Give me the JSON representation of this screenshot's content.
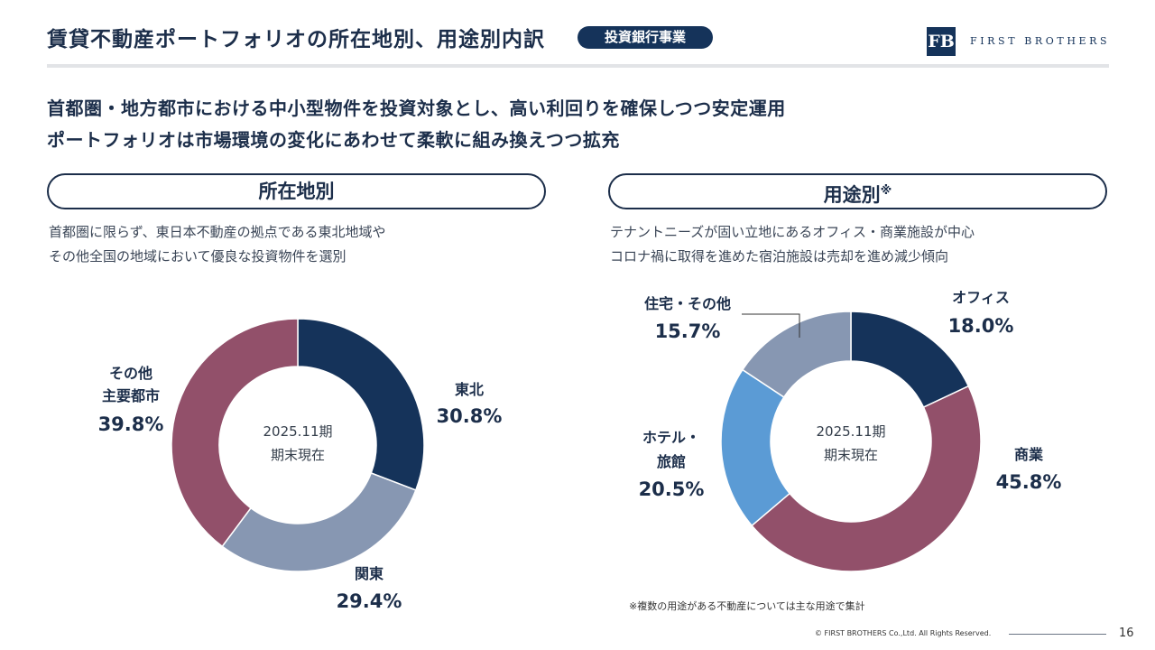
{
  "header": {
    "title": "賃貸不動産ポートフォリオの所在地別、用途別内訳",
    "badge": "投資銀行事業",
    "logo_mark": "FB",
    "logo_text": "FIRST BROTHERS"
  },
  "lead": {
    "line1": "首都圏・地方都市における中小型物件を投資対象とし、高い利回りを確保しつつ安定運用",
    "line2": "ポートフォリオは市場環境の変化にあわせて柔軟に組み換えつつ拡充"
  },
  "left_panel": {
    "heading": "所在地別",
    "desc1": "首都圏に限らず、東日本不動産の拠点である東北地域や",
    "desc2": "その他全国の地域において優良な投資物件を選別"
  },
  "right_panel": {
    "heading": "用途別",
    "heading_mark": "※",
    "desc1": "テナントニーズが固い立地にあるオフィス・商業施設が中心",
    "desc2": "コロナ禍に取得を進めた宿泊施設は売却を進め減少傾向"
  },
  "chart_data": [
    {
      "type": "pie",
      "title": "所在地別",
      "center_label": [
        "2025.11期",
        "期末現在"
      ],
      "start": "12 o'clock, clockwise",
      "slices": [
        {
          "name": "東北",
          "value": 30.8,
          "label": "30.8%",
          "color": "#15335a"
        },
        {
          "name": "関東",
          "value": 29.4,
          "label": "29.4%",
          "color": "#8797b2"
        },
        {
          "name": "その他主要都市",
          "name_lines": [
            "その他",
            "主要都市"
          ],
          "value": 39.8,
          "label": "39.8%",
          "color": "#92506a"
        }
      ]
    },
    {
      "type": "pie",
      "title": "用途別",
      "center_label": [
        "2025.11期",
        "期末現在"
      ],
      "start": "12 o'clock, clockwise",
      "slices": [
        {
          "name": "オフィス",
          "value": 18.0,
          "label": "18.0%",
          "color": "#15335a"
        },
        {
          "name": "商業",
          "value": 45.8,
          "label": "45.8%",
          "color": "#92506a"
        },
        {
          "name": "ホテル・旅館",
          "name_lines": [
            "ホテル・",
            "旅館"
          ],
          "value": 20.5,
          "label": "20.5%",
          "color": "#5b9bd5"
        },
        {
          "name": "住宅・その他",
          "value": 15.7,
          "label": "15.7%",
          "color": "#8797b2"
        }
      ]
    }
  ],
  "footer": {
    "note": "※複数の用途がある不動産については主な用途で集計",
    "copyright": "© FIRST BROTHERS Co.,Ltd. All Rights Reserved.",
    "page": "16"
  }
}
